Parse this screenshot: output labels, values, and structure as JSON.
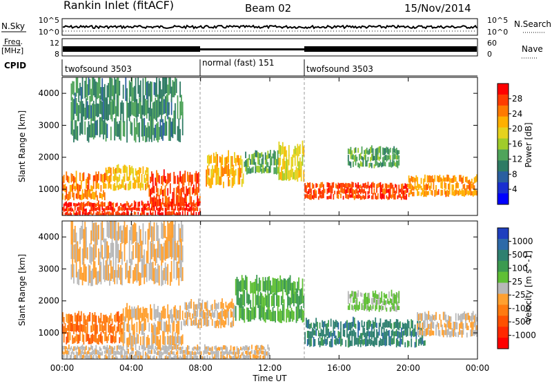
{
  "header": {
    "station": "Rankin Inlet (fitACF)",
    "beam": "Beam 02",
    "date": "15/Nov/2014"
  },
  "top_panels": {
    "nsky_label": "N.Sky",
    "nsearch_label": "N.Search",
    "nsky_ticks": [
      "10^5",
      "10^0"
    ],
    "nsearch_ticks": [
      "10^5",
      "10^0"
    ],
    "freq_label_1": "Freq.",
    "freq_label_2": "[MHz]",
    "freq_ticks": [
      "12",
      "8"
    ],
    "nave_label": "Nave",
    "nave_ticks": [
      "60",
      "0"
    ],
    "cpid_label": "CPID",
    "cpid_segments": [
      {
        "label": "twofsound 3503",
        "start_h": 0,
        "end_h": 8
      },
      {
        "label": "normal (fast) 151",
        "start_h": 8,
        "end_h": 14
      },
      {
        "label": "twofsound 3503",
        "start_h": 14,
        "end_h": 24
      }
    ]
  },
  "power_colorbar": {
    "label": "Power [dB]",
    "ticks": [
      "28",
      "24",
      "20",
      "16",
      "12",
      "8",
      "4"
    ],
    "colors": [
      "#ff0000",
      "#ff3c00",
      "#ff7a00",
      "#ffb000",
      "#e6d21e",
      "#a0cc2a",
      "#4fa45a",
      "#2e7b64",
      "#2a5fa0",
      "#1a2fd0",
      "#0000ff"
    ]
  },
  "velocity_colorbar": {
    "label": "Velocity [m s^-1]",
    "ticks": [
      "1000",
      "500",
      "100",
      "25",
      "-25",
      "-100",
      "-500",
      "-1000"
    ],
    "colors": [
      "#1f3fbf",
      "#2e6aa8",
      "#2f8070",
      "#3c9a50",
      "#5fbf35",
      "#b8b8b8",
      "#ffa030",
      "#ff7a10",
      "#ff5000",
      "#ff2800",
      "#ff0000"
    ]
  },
  "chart_data": [
    {
      "type": "heatmap",
      "title": "",
      "xlabel": "Time UT",
      "ylabel": "Slant Range [km]",
      "x_ticks": [
        "00:00",
        "04:00",
        "08:00",
        "12:00",
        "16:00",
        "20:00",
        "00:00"
      ],
      "y_ticks": [
        "1000",
        "2000",
        "3000",
        "4000"
      ],
      "xlim_hours": [
        0,
        24
      ],
      "ylim": [
        180,
        4500
      ],
      "colorscale_range": [
        0,
        30
      ],
      "bands": [
        {
          "start_h": 0.0,
          "end_h": 2.5,
          "range_lo": 700,
          "range_hi": 1500,
          "value": 24
        },
        {
          "start_h": 2.5,
          "end_h": 5.0,
          "range_lo": 1000,
          "range_hi": 1700,
          "value": 20
        },
        {
          "start_h": 5.0,
          "end_h": 8.0,
          "range_lo": 500,
          "range_hi": 1500,
          "value": 27
        },
        {
          "start_h": 8.3,
          "end_h": 10.5,
          "range_lo": 1100,
          "range_hi": 2100,
          "value": 21
        },
        {
          "start_h": 10.5,
          "end_h": 12.5,
          "range_lo": 1500,
          "range_hi": 2200,
          "value": 12
        },
        {
          "start_h": 12.5,
          "end_h": 14.0,
          "range_lo": 1300,
          "range_hi": 2400,
          "value": 18
        },
        {
          "start_h": 14.0,
          "end_h": 20.0,
          "range_lo": 700,
          "range_hi": 1200,
          "value": 27
        },
        {
          "start_h": 16.5,
          "end_h": 19.5,
          "range_lo": 1700,
          "range_hi": 2300,
          "value": 12
        },
        {
          "start_h": 20.0,
          "end_h": 24.0,
          "range_lo": 800,
          "range_hi": 1400,
          "value": 23
        },
        {
          "start_h": 0.0,
          "end_h": 8.0,
          "range_lo": 180,
          "range_hi": 600,
          "value": 28
        },
        {
          "start_h": 0.5,
          "end_h": 7.0,
          "range_lo": 2600,
          "range_hi": 4500,
          "value": 10
        }
      ]
    },
    {
      "type": "heatmap",
      "title": "",
      "xlabel": "Time UT",
      "ylabel": "Slant Range [km]",
      "x_ticks": [
        "00:00",
        "04:00",
        "08:00",
        "12:00",
        "16:00",
        "20:00",
        "00:00"
      ],
      "y_ticks": [
        "1000",
        "2000",
        "3000",
        "4000"
      ],
      "xlim_hours": [
        0,
        24
      ],
      "ylim": [
        180,
        4500
      ],
      "colorscale_range": [
        -1000,
        1000
      ],
      "bands": [
        {
          "start_h": 0.0,
          "end_h": 3.5,
          "range_lo": 700,
          "range_hi": 1600,
          "value": 400
        },
        {
          "start_h": 3.5,
          "end_h": 7.0,
          "range_lo": 600,
          "range_hi": 1800,
          "value": 150
        },
        {
          "start_h": 7.0,
          "end_h": 10.0,
          "range_lo": 1200,
          "range_hi": 2000,
          "value": 120
        },
        {
          "start_h": 10.0,
          "end_h": 14.0,
          "range_lo": 1400,
          "range_hi": 2700,
          "value": -300
        },
        {
          "start_h": 14.0,
          "end_h": 21.0,
          "range_lo": 600,
          "range_hi": 1400,
          "value": -600
        },
        {
          "start_h": 16.5,
          "end_h": 19.5,
          "range_lo": 1700,
          "range_hi": 2300,
          "value": -150
        },
        {
          "start_h": 20.5,
          "end_h": 24.0,
          "range_lo": 900,
          "range_hi": 1600,
          "value": 80
        },
        {
          "start_h": 0.0,
          "end_h": 12.0,
          "range_lo": 180,
          "range_hi": 600,
          "value": 50
        },
        {
          "start_h": 0.5,
          "end_h": 7.0,
          "range_lo": 2600,
          "range_hi": 4500,
          "value": 100
        }
      ]
    }
  ]
}
